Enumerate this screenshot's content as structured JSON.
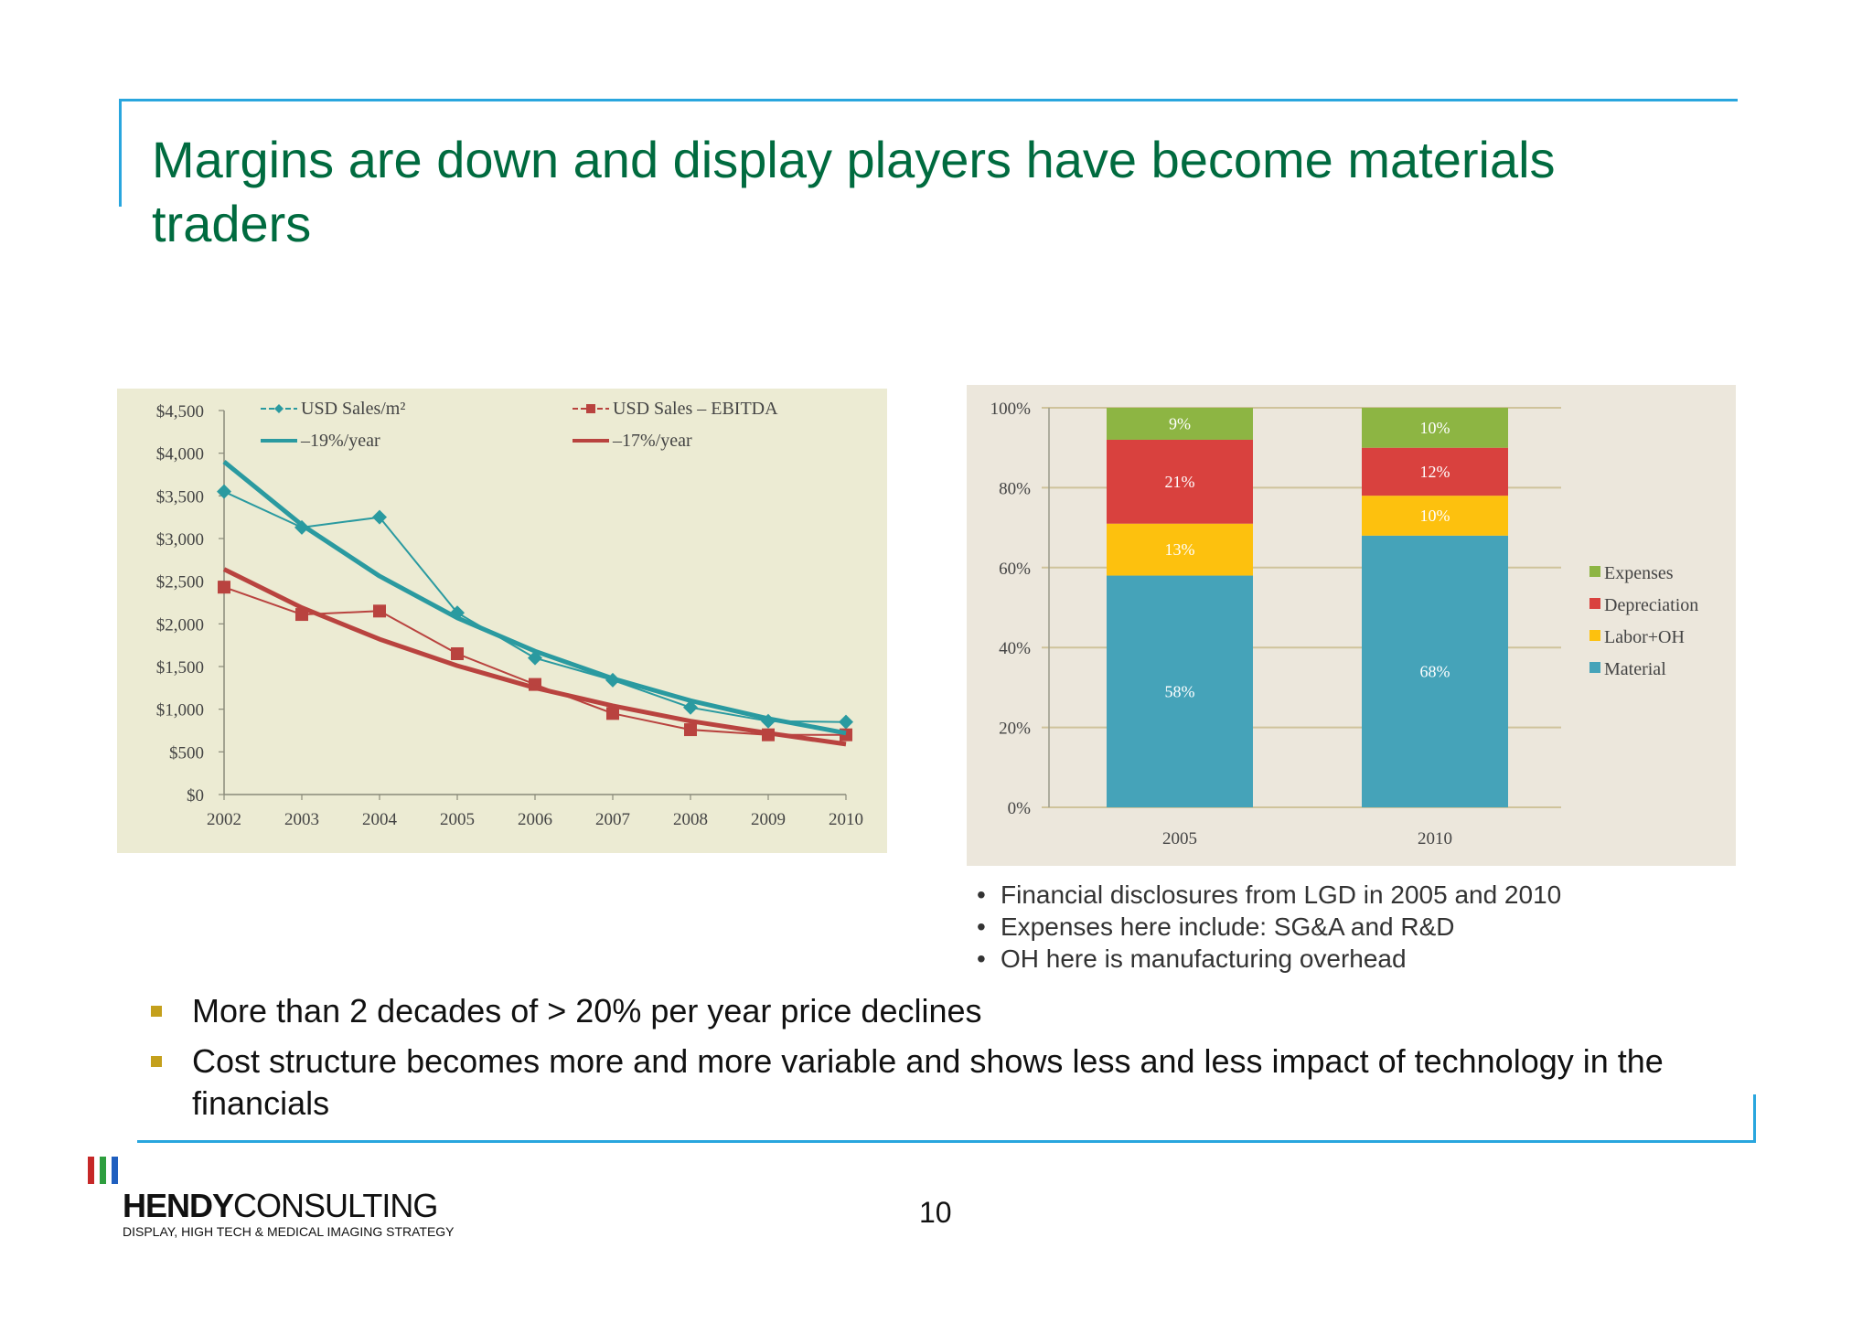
{
  "slide": {
    "title": "Margins are down and display players have become materials traders",
    "page_number": "10",
    "notes": [
      "Financial disclosures from LGD in 2005 and 2010",
      "Expenses here include: SG&A and R&D",
      "OH here is manufacturing overhead"
    ],
    "bullets": [
      "More than 2 decades of > 20% per year price declines",
      "Cost structure becomes more and more variable and shows less and less impact of technology in the financials"
    ],
    "logo": {
      "name_bold": "HENDY",
      "name_light": "CONSULTING",
      "tagline": "DISPLAY, HIGH TECH & MEDICAL IMAGING STRATEGY",
      "bar_colors": [
        "#c62828",
        "#2e9e3e",
        "#1f5fbf"
      ]
    }
  },
  "chart_data": [
    {
      "type": "line",
      "categories": [
        "2002",
        "2003",
        "2004",
        "2005",
        "2006",
        "2007",
        "2008",
        "2009",
        "2010"
      ],
      "y_ticks": [
        "$0",
        "$500",
        "$1,000",
        "$1,500",
        "$2,000",
        "$2,500",
        "$3,000",
        "$3,500",
        "$4,000",
        "$4,500"
      ],
      "ylim": [
        0,
        4500
      ],
      "grid": false,
      "legend": "top",
      "series": [
        {
          "name": "USD Sales/m²",
          "color": "#2a9aa0",
          "marker": "diamond",
          "values": [
            3550,
            3130,
            3250,
            2130,
            1600,
            1340,
            1020,
            860,
            850
          ]
        },
        {
          "name": "USD Sales – EBITDA",
          "color": "#b9433f",
          "marker": "square",
          "values": [
            2430,
            2110,
            2150,
            1650,
            1290,
            950,
            760,
            700,
            700
          ]
        },
        {
          "name": "–19%/year",
          "color": "#2a9aa0",
          "trend": true,
          "values": [
            3900,
            3160,
            2560,
            2070,
            1680,
            1360,
            1100,
            890,
            720
          ]
        },
        {
          "name": "–17%/year",
          "color": "#b9433f",
          "trend": true,
          "values": [
            2640,
            2190,
            1820,
            1510,
            1250,
            1040,
            860,
            720,
            590
          ]
        }
      ]
    },
    {
      "type": "bar",
      "stacked": true,
      "categories": [
        "2005",
        "2010"
      ],
      "y_ticks": [
        "0%",
        "20%",
        "40%",
        "60%",
        "80%",
        "100%"
      ],
      "ylim": [
        0,
        100
      ],
      "grid": true,
      "legend": "right",
      "series": [
        {
          "name": "Material",
          "color": "#45a3b9",
          "values": [
            58,
            68
          ]
        },
        {
          "name": "Labor+OH",
          "color": "#fdc10e",
          "values": [
            13,
            10
          ]
        },
        {
          "name": "Depreciation",
          "color": "#d9413e",
          "values": [
            21,
            12
          ]
        },
        {
          "name": "Expenses",
          "color": "#8db543",
          "values": [
            9,
            10
          ]
        }
      ]
    }
  ]
}
